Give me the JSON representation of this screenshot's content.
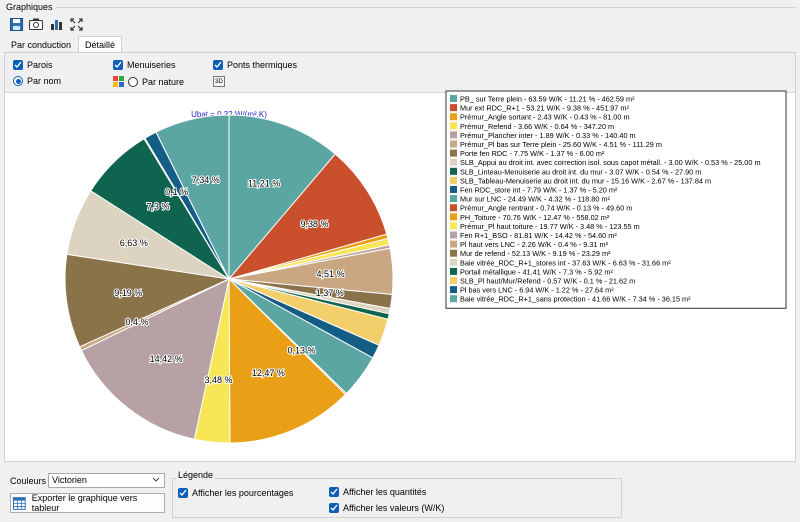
{
  "group": {
    "title": "Graphiques"
  },
  "toolbar": {
    "icons": [
      "save-icon",
      "camera-icon",
      "chart-icon",
      "fullscreen-icon"
    ]
  },
  "tabs": [
    {
      "label": "Par conduction",
      "active": false
    },
    {
      "label": "Détaillé",
      "active": true
    }
  ],
  "options": {
    "parois": {
      "label": "Parois",
      "checked": true
    },
    "menuiseries": {
      "label": "Menuiseries",
      "checked": true
    },
    "ponts": {
      "label": "Ponts thermiques",
      "checked": true
    },
    "par_nom": {
      "label": "Par nom",
      "selected": true
    },
    "par_nature": {
      "label": "Par nature",
      "selected": false
    },
    "btn3d": "3D"
  },
  "chart_data": {
    "type": "pie",
    "title": "Ubat = 0.32 W/(m².K)",
    "slices": [
      {
        "legend": "PB_ sur Terre plein - 63.59 W/K - 11.21 % - 462.59 m²",
        "value": 11.21,
        "label": "11,21 %",
        "color": "#5ba6a2"
      },
      {
        "legend": "Mur ext RDC_R+1 - 53.21 W/K - 9.38 % - 451.97 m²",
        "value": 9.38,
        "label": "9,38 %",
        "color": "#ca4f2c"
      },
      {
        "legend": "Prémur_Angle sortant - 2.43 W/K - 0.43 % - 81.00 m",
        "value": 0.43,
        "label": "",
        "color": "#e9a016"
      },
      {
        "legend": "Prémur_Refend - 3.66 W/K - 0.64 % - 347.20 m",
        "value": 0.64,
        "label": "",
        "color": "#f7e655"
      },
      {
        "legend": "Prémur_Plancher inter - 1.89 W/K - 0.33 % - 140.40 m",
        "value": 0.33,
        "label": "",
        "color": "#b7a1a5"
      },
      {
        "legend": "Prémur_Pl bas sur Terre plein - 25.60 W/K - 4.51 % - 111.29 m",
        "value": 4.51,
        "label": "4,51 %",
        "color": "#c9a782"
      },
      {
        "legend": "Porte fen RDC - 7.75 W/K - 1.37 % - 6.00 m²",
        "value": 1.37,
        "label": "1,37 %",
        "color": "#8b7349"
      },
      {
        "legend": "SLB_Appui au droit int. avec correction isol. sous capot métall. - 3.00 W/K - 0.53 % - 25.00 m",
        "value": 0.53,
        "label": "",
        "color": "#dcd3c0"
      },
      {
        "legend": "SLB_Linteau-Menuiserie au droit int. du mur - 3.07 W/K - 0.54 % - 27.90 m",
        "value": 0.54,
        "label": "",
        "color": "#0f6450"
      },
      {
        "legend": "SLB_Tableau-Menuiserie au droit int. du mur - 15.16 W/K - 2.67 % - 137.84 m",
        "value": 2.67,
        "label": "",
        "color": "#f3cf6c"
      },
      {
        "legend": "Fen RDC_store int - 7.79 W/K - 1.37 % - 5.20 m²",
        "value": 1.37,
        "label": "",
        "color": "#145e86"
      },
      {
        "legend": "Mur sur LNC - 24.49 W/K - 4.32 % - 118.80 m²",
        "value": 4.32,
        "label": "",
        "color": "#5ba6a2"
      },
      {
        "legend": "Prémur_Angle rentrant - 0.74 W/K - 0.13 % - 49.60 m",
        "value": 0.13,
        "label": "0,13 %",
        "color": "#ca4f2c"
      },
      {
        "legend": "PH_Toiture - 70.76 W/K - 12.47 % - 558.02 m²",
        "value": 12.47,
        "label": "12,47 %",
        "color": "#e9a016"
      },
      {
        "legend": "Prémur_Pl haut toiture - 19.77 W/K - 3.48 % - 123.55 m",
        "value": 3.48,
        "label": "3,48 %",
        "color": "#f7e655"
      },
      {
        "legend": "Fen R+1_BSO - 81.81 W/K - 14.42 % - 54.60 m²",
        "value": 14.42,
        "label": "14,42 %",
        "color": "#b7a1a5"
      },
      {
        "legend": "Pl haut vers LNC - 2.26 W/K - 0.4 % - 9.31 m²",
        "value": 0.4,
        "label": "0,4 %",
        "color": "#c9a782"
      },
      {
        "legend": "Mur de refend - 52.13 W/K - 9.19 % - 23.29 m²",
        "value": 9.19,
        "label": "9,19 %",
        "color": "#8b7349"
      },
      {
        "legend": "Baie vitrée_RDC_R+1_stores int - 37.63 W/K - 6.63 % - 31.66 m²",
        "value": 6.63,
        "label": "6,63 %",
        "color": "#dcd3c0"
      },
      {
        "legend": "Portail métallique - 41.41 W/K - 7.3 % - 5.92 m²",
        "value": 7.3,
        "label": "7,3 %",
        "color": "#0f6450"
      },
      {
        "legend": "SLB_Pl haut/Mur/Refend - 0.57 W/K - 0.1 % - 21.62 m",
        "value": 0.1,
        "label": "0,1 %",
        "color": "#f3cf6c"
      },
      {
        "legend": "Pl bas vers LNC - 6.94 W/K - 1.22 % - 27.64 m²",
        "value": 1.22,
        "label": "",
        "color": "#145e86"
      },
      {
        "legend": "Baie vitrée_RDC_R+1_sans protection - 41.66 W/K - 7.34 % - 36.15 m²",
        "value": 7.34,
        "label": "7,34 %",
        "color": "#5ba6a2"
      }
    ],
    "legend_position": "right"
  },
  "bottom": {
    "couleurs_label": "Couleurs",
    "couleurs_value": "Victorien",
    "export_label": "Exporter le graphique vers tableur",
    "legende_title": "Légende",
    "pourcentages": "Afficher les pourcentages",
    "quantites": "Afficher les quantités",
    "valeurs": "Afficher les valeurs (W/K)"
  }
}
